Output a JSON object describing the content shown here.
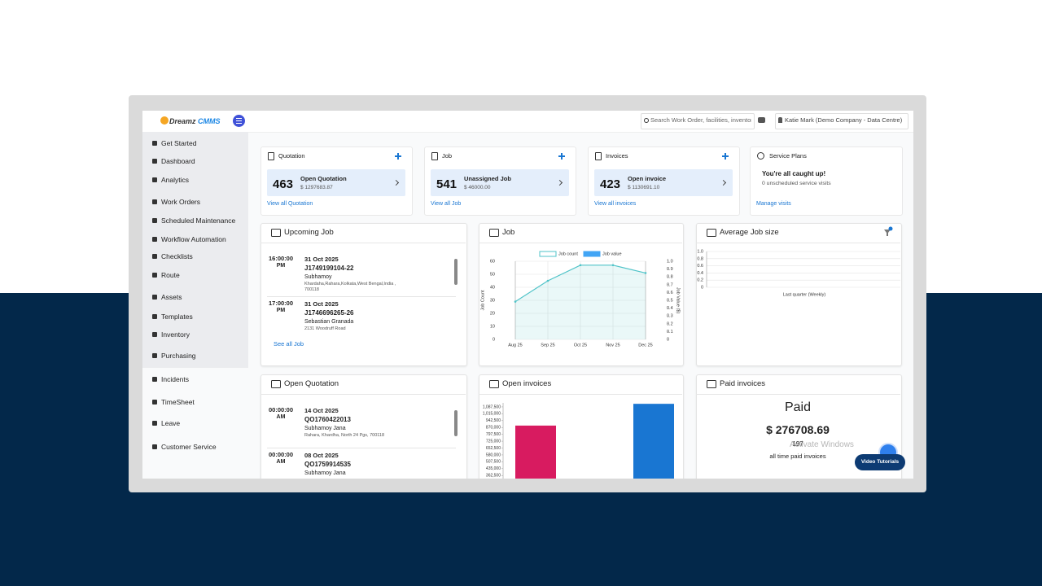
{
  "header": {
    "logo_a": "Dreamz",
    "logo_b": "CMMS",
    "search_placeholder": "Search Work Order, facilities, inventory",
    "user": "Katie Mark (Demo Company - Data Centre)"
  },
  "sidebar": [
    "Get Started",
    "Dashboard",
    "Analytics",
    "Work Orders",
    "Scheduled Maintenance",
    "Workflow Automation",
    "Checklists",
    "Route",
    "Assets",
    "Templates",
    "Inventory",
    "Purchasing",
    "Incidents",
    "TimeSheet",
    "Leave",
    "Customer Service"
  ],
  "summary_cards": [
    {
      "title": "Quotation",
      "count": 463,
      "label": "Open Quotation",
      "amount": "$ 1297683.87",
      "link": "View all Quotation"
    },
    {
      "title": "Job",
      "count": 541,
      "label": "Unassigned Job",
      "amount": "$ 46000.00",
      "link": "View all Job"
    },
    {
      "title": "Invoices",
      "count": 423,
      "label": "Open invoice",
      "amount": "$ 1130691.10",
      "link": "View all invoices"
    }
  ],
  "service_plans": {
    "title": "Service Plans",
    "heading": "You're all caught up!",
    "text": "0 unscheduled service visits",
    "link": "Manage visits"
  },
  "upcoming_job": {
    "title": "Upcoming Job",
    "items": [
      {
        "time": "16:00:00",
        "period": "PM",
        "date": "31 Oct 2025",
        "code": "J1749199104-22",
        "name": "Subhamoy",
        "address": "Khardaha,Rahara,Kolkata,West Bengal,India , 700118"
      },
      {
        "time": "17:00:00",
        "period": "PM",
        "date": "31 Oct 2025",
        "code": "J1746696265-26",
        "name": "Sebastian Granada",
        "address": "2131 Woodruff Road"
      }
    ],
    "link": "See all Job"
  },
  "job_chart": {
    "title": "Job",
    "type": "line",
    "categories": [
      "Aug 25",
      "Sep 25",
      "Oct 25",
      "Nov 25",
      "Dec 25"
    ],
    "series": [
      {
        "name": "Job count",
        "color": "#4fc3c8",
        "values": [
          29,
          45,
          57,
          57,
          51
        ]
      },
      {
        "name": "Job value",
        "color": "#42a5f5",
        "type": "bar",
        "axis": "y2",
        "values": [
          0,
          0,
          0,
          0,
          0
        ]
      }
    ],
    "ylabel": "Job Count",
    "y2label": "Job Value ($)",
    "ylim": [
      0,
      60
    ],
    "yticks": [
      0,
      10,
      20,
      30,
      40,
      50,
      60
    ],
    "y2lim": [
      0,
      1
    ],
    "y2ticks": [
      0,
      0.1,
      0.2,
      0.3,
      0.4,
      0.5,
      0.6,
      0.7,
      0.8,
      0.9,
      {
        "value": 1,
        "label": "1.0"
      }
    ],
    "grid": true
  },
  "average_job_size": {
    "title": "Average Job size",
    "xlabel": "Last quarter (Weekly)",
    "ylim": [
      0,
      1
    ],
    "yticks": [
      0,
      0.2,
      0.4,
      0.6,
      0.8,
      {
        "value": 1,
        "label": "1.0"
      }
    ],
    "grid": true
  },
  "open_quotation": {
    "title": "Open Quotation",
    "items": [
      {
        "time": "00:00:00",
        "period": "AM",
        "date": "14 Oct 2025",
        "code": "QO1760422013",
        "name": "Subhamoy Jana",
        "address": "Rahara, Khardha, North 24 Pgs, 700118"
      },
      {
        "time": "00:00:00",
        "period": "AM",
        "date": "08 Oct 2025",
        "code": "QO1759914535",
        "name": "Subhamoy Jana"
      }
    ]
  },
  "open_invoices": {
    "title": "Open invoices",
    "type": "bar",
    "categories": [
      null,
      null
    ],
    "values": [
      890000,
      1120000
    ],
    "colors": [
      "#d81b60",
      "#1976d2"
    ],
    "ylim": [
      330000,
      1130000
    ],
    "yticks": [
      {
        "value": 362500,
        "label": "362,500"
      },
      {
        "value": 435000,
        "label": "435,000"
      },
      {
        "value": 507500,
        "label": "507,500"
      },
      {
        "value": 580000,
        "label": "580,000"
      },
      {
        "value": 652500,
        "label": "652,500"
      },
      {
        "value": 725000,
        "label": "725,000"
      },
      {
        "value": 797500,
        "label": "797,500"
      },
      {
        "value": 870000,
        "label": "870,000"
      },
      {
        "value": 942500,
        "label": "942,500"
      },
      {
        "value": 1015000,
        "label": "1,015,000"
      },
      {
        "value": 1087500,
        "label": "1,087,500"
      }
    ]
  },
  "paid_invoices": {
    "title": "Paid invoices",
    "heading": "Paid",
    "amount": "$ 276708.69",
    "count": "197",
    "caption": "all time paid invoices"
  },
  "watermark": "Activate Windows",
  "video_button": "Video Tutorials"
}
